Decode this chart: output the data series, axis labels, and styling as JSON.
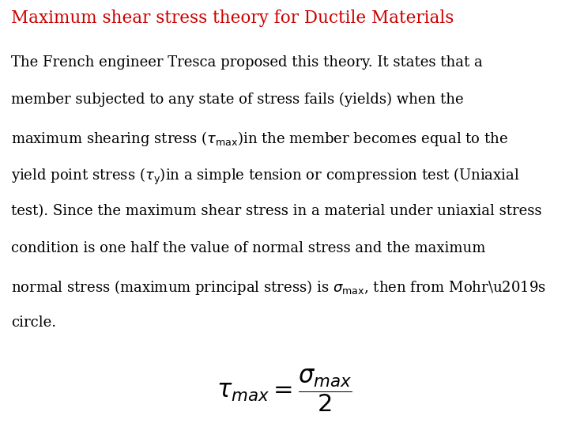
{
  "title": "Maximum shear stress theory for Ductile Materials",
  "title_color": "#cc0000",
  "title_fontsize": 15.5,
  "background_color": "#ffffff",
  "text_color": "#000000",
  "body_fontsize": 13.0,
  "formula_fontsize": 22,
  "line1": "The French engineer Tresca proposed this theory. It states that a",
  "line2": "member subjected to any state of stress fails (yields) when the",
  "line5": "test). Since the maximum shear stress in a material under uniaxial stress",
  "line6": "condition is one half the value of normal stress and the maximum",
  "line8": "circle."
}
